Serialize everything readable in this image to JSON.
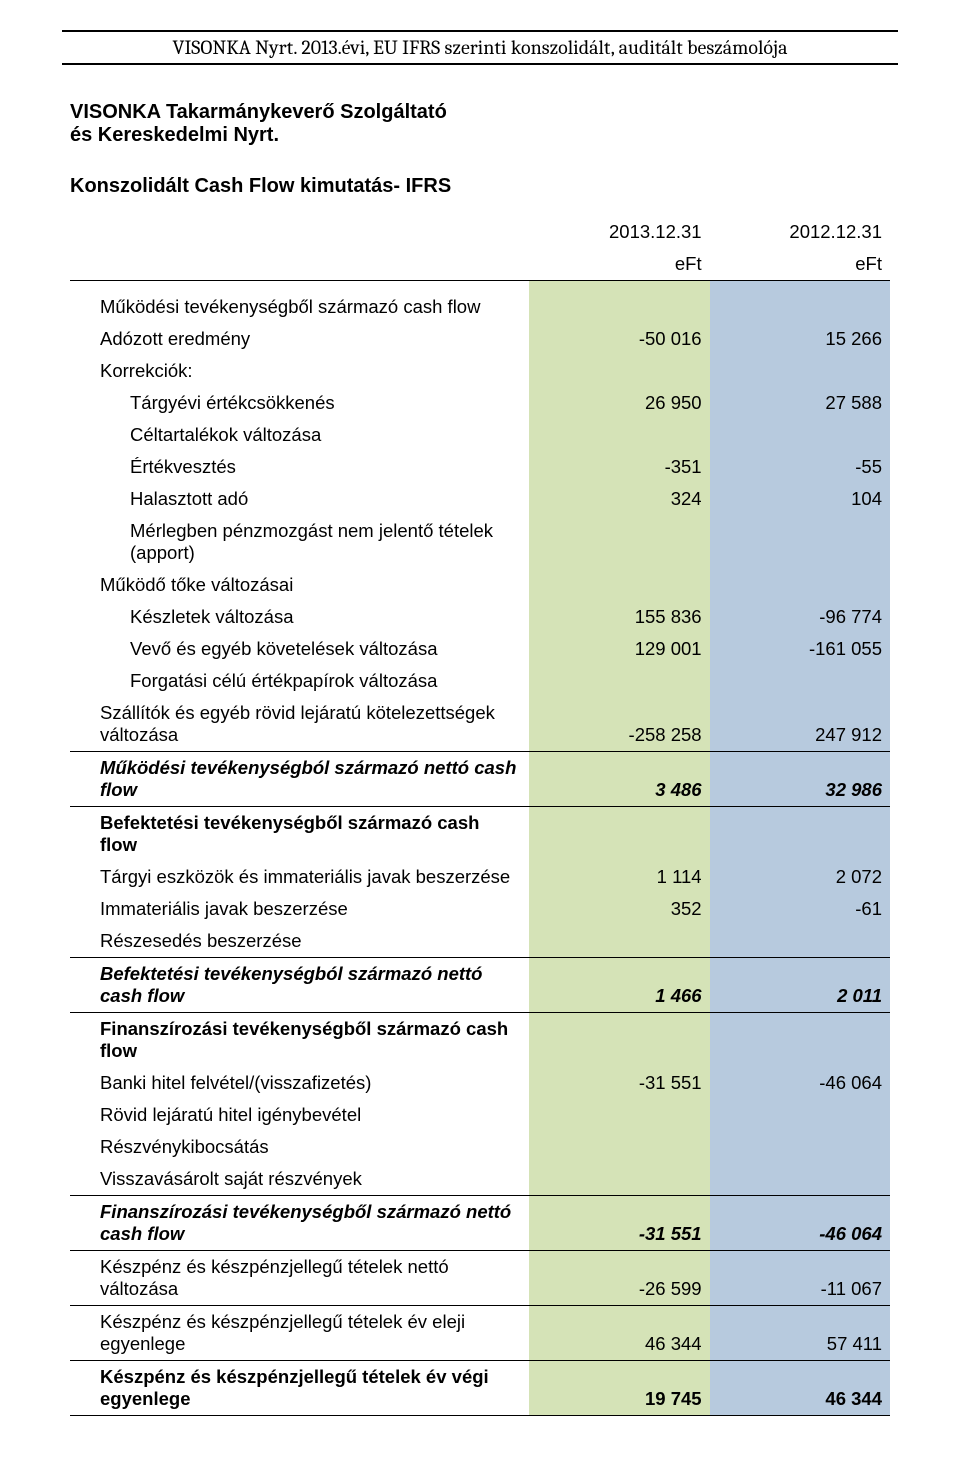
{
  "colors": {
    "col_a_bg": "#d5e3b7",
    "col_b_bg": "#b7cade",
    "border": "#000000",
    "text": "#000000",
    "page_bg": "#ffffff",
    "header_font": "Cambria, 'Times New Roman', serif",
    "body_font": "Arial, Helvetica, sans-serif",
    "header_fontsize_pt": 15,
    "body_fontsize_pt": 14
  },
  "header": {
    "title": "VISONKA Nyrt. 2013.évi, EU IFRS szerinti konszolidált, auditált beszámolója"
  },
  "company": {
    "line1": "VISONKA Takarmánykeverő  Szolgáltató",
    "line2": "és Kereskedelmi Nyrt."
  },
  "doc_title": "Konszolidált Cash Flow kimutatás- IFRS",
  "col_headers": {
    "a": "2013.12.31",
    "b": "2012.12.31",
    "units": "eFt"
  },
  "sections": {
    "op_header": "Működési tevékenységből származó cash flow",
    "adozott": {
      "label": "Adózott eredmény",
      "a": "-50 016",
      "b": "15 266"
    },
    "korrekciok": "Korrekciók:",
    "targyevi": {
      "label": "Tárgyévi értékcsökkenés",
      "a": "26 950",
      "b": "27 588"
    },
    "celtart": {
      "label": "Céltartalékok változása",
      "a": "",
      "b": ""
    },
    "ertekv": {
      "label": "Értékvesztés",
      "a": "-351",
      "b": "-55"
    },
    "halaszt": {
      "label": "Halasztott adó",
      "a": "324",
      "b": "104"
    },
    "merleg": {
      "label": "Mérlegben pénzmozgást nem jelentő tételek (apport)",
      "a": "",
      "b": ""
    },
    "mukodo_toke": "Működő tőke változásai",
    "keszlet": {
      "label": "Készletek változása",
      "a": "155 836",
      "b": "-96 774"
    },
    "vevo": {
      "label": "Vevő és egyéb követelések változása",
      "a": "129 001",
      "b": "-161 055"
    },
    "forgat": {
      "label": "Forgatási célú értékpapírok változása",
      "a": "",
      "b": ""
    },
    "szallitok": {
      "label": "Szállítók és egyéb rövid lejáratú kötelezettségek változása",
      "a": "-258 258",
      "b": "247 912"
    },
    "op_net": {
      "label": "Működési tevékenységból származó nettó cash flow",
      "a": "3 486",
      "b": "32 986"
    },
    "inv_header": "Befektetési tevékenységből származó cash flow",
    "targyi": {
      "label": "Tárgyi eszközök és immateriális javak beszerzése",
      "a": "1 114",
      "b": "2 072"
    },
    "immat": {
      "label": "Immateriális javak beszerzése",
      "a": "352",
      "b": "-61"
    },
    "reszesedes": {
      "label": "Részesedés beszerzése",
      "a": "",
      "b": ""
    },
    "inv_net": {
      "label": "Befektetési tevékenységból származó nettó cash flow",
      "a": "1 466",
      "b": "2 011"
    },
    "fin_header": "Finanszírozási tevékenységből származó cash flow",
    "banki": {
      "label": "Banki hitel felvétel/(visszafizetés)",
      "a": "-31 551",
      "b": "-46 064"
    },
    "rovid": {
      "label": "Rövid lejáratú hitel igénybevétel",
      "a": "",
      "b": ""
    },
    "reszveny": {
      "label": "Részvénykibocsátás",
      "a": "",
      "b": ""
    },
    "vissza": {
      "label": "Visszavásárolt saját részvények",
      "a": "",
      "b": ""
    },
    "fin_net": {
      "label": "Finanszírozási tevékenységből származó nettó cash flow",
      "a": "-31 551",
      "b": "-46 064"
    },
    "netto_valt": {
      "label": "Készpénz és készpénzjellegű tételek nettó változása",
      "a": "-26 599",
      "b": "-11 067"
    },
    "ev_eleji": {
      "label": "Készpénz és készpénzjellegű tételek év eleji egyenlege",
      "a": "46 344",
      "b": "57 411"
    },
    "ev_vegi": {
      "label": "Készpénz és készpénzjellegű tételek év végi egyenlege",
      "a": "19 745",
      "b": "46 344"
    }
  }
}
